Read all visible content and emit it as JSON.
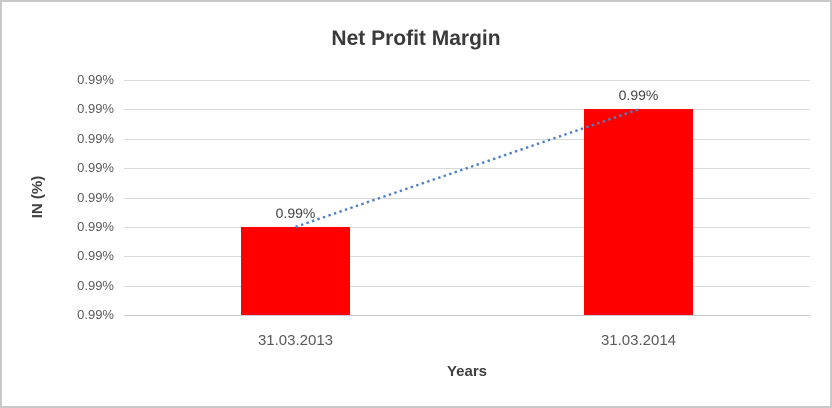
{
  "chart_data": {
    "type": "bar",
    "title": "Net Profit Margin",
    "xlabel": "Years",
    "ylabel": "IN (%)",
    "categories": [
      "31.03.2013",
      "31.03.2014"
    ],
    "series": [
      {
        "name": "Net Profit Margin",
        "values": [
          0.99,
          0.99
        ],
        "unit": "%",
        "bar_heights_grid_units": [
          3,
          7
        ],
        "color": "#ff0000"
      }
    ],
    "data_labels": [
      "0.99%",
      "0.99%"
    ],
    "y_axis": {
      "tick_labels": [
        "0.99%",
        "0.99%",
        "0.99%",
        "0.99%",
        "0.99%",
        "0.99%",
        "0.99%",
        "0.99%",
        "0.99%"
      ],
      "grid_intervals": 8
    },
    "trendline": {
      "type": "linear",
      "style": "dotted",
      "color": "#4d80c2",
      "from_index": 0,
      "to_index": 1
    },
    "legend": "none",
    "grid": "on",
    "colors": {
      "bar": "#ff0000",
      "gridline": "#d9d9d9",
      "axis_line": "#c6cacd",
      "title_text": "#3a3a3a",
      "axis_title_text": "#3f3f3f",
      "tick_text": "#595959",
      "trendline": "#4d80c2",
      "chart_border": "#c8c8c8",
      "background": "#ffffff"
    }
  }
}
